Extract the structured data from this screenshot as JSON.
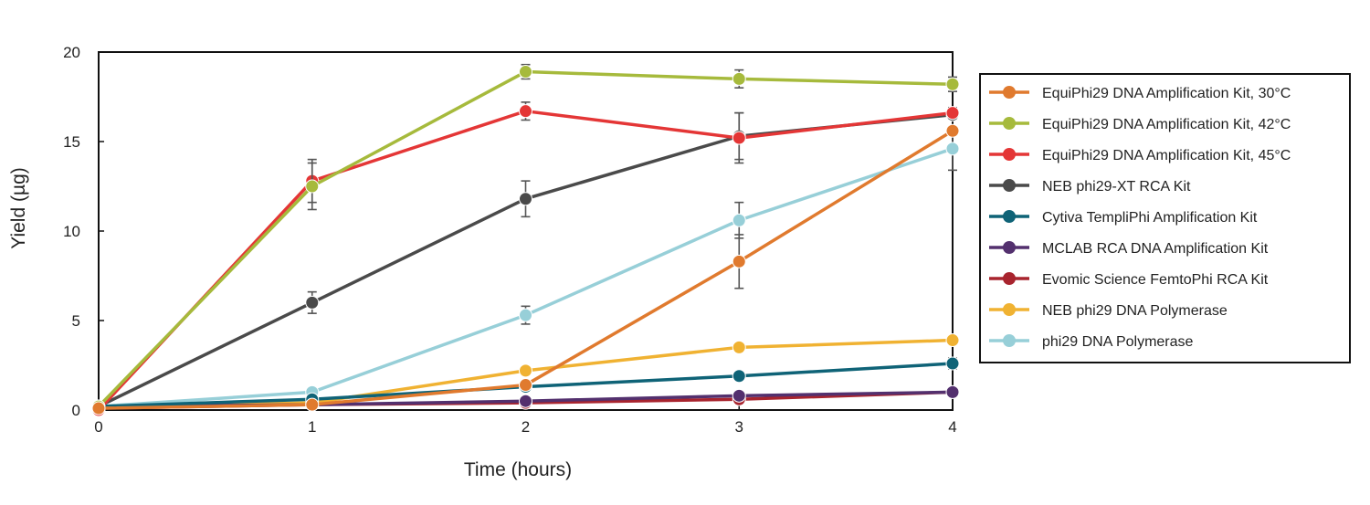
{
  "chart_data": {
    "type": "line",
    "title": "",
    "xlabel": "Time (hours)",
    "ylabel": "Yield (µg)",
    "x": [
      0,
      1,
      2,
      3,
      4
    ],
    "x_ticks": [
      "0",
      "1",
      "2",
      "3",
      "4"
    ],
    "y_ticks": [
      "0",
      "5",
      "10",
      "15",
      "20"
    ],
    "xlim": [
      0,
      4
    ],
    "ylim": [
      0,
      20
    ],
    "grid": false,
    "legend_position": "right",
    "error_bar_color": "#555555",
    "series": [
      {
        "name": "EquiPhi29 DNA Amplification Kit, 30°C",
        "color": "#E07A2E",
        "values": [
          0.1,
          0.3,
          1.4,
          8.3,
          15.6
        ],
        "errors": [
          0,
          0,
          0.2,
          1.5,
          0.2
        ]
      },
      {
        "name": "EquiPhi29 DNA Amplification Kit, 42°C",
        "color": "#A6BA3C",
        "values": [
          0.2,
          12.5,
          18.9,
          18.5,
          18.2
        ],
        "errors": [
          0,
          1.3,
          0.4,
          0.5,
          0.4
        ]
      },
      {
        "name": "EquiPhi29 DNA Amplification Kit, 45°C",
        "color": "#E43636",
        "values": [
          0.0,
          12.8,
          16.7,
          15.2,
          16.6
        ],
        "errors": [
          0,
          1.2,
          0.5,
          1.4,
          0.3
        ]
      },
      {
        "name": "NEB phi29-XT RCA Kit",
        "color": "#4A4A4A",
        "values": [
          0.2,
          6.0,
          11.8,
          15.3,
          16.5
        ],
        "errors": [
          0,
          0.6,
          1.0,
          1.3,
          0.2
        ]
      },
      {
        "name": "Cytiva TempliPhi Amplification Kit",
        "color": "#0F6377",
        "values": [
          0.2,
          0.6,
          1.3,
          1.9,
          2.6
        ],
        "errors": [
          0,
          0,
          0,
          0.2,
          0.3
        ]
      },
      {
        "name": "MCLAB RCA DNA Amplification Kit",
        "color": "#53306E",
        "values": [
          0.2,
          0.3,
          0.5,
          0.8,
          1.0
        ],
        "errors": [
          0,
          0,
          0,
          0,
          0.2
        ]
      },
      {
        "name": "Evomic Science FemtoPhi RCA Kit",
        "color": "#A8242E",
        "values": [
          0.1,
          0.3,
          0.4,
          0.6,
          1.0
        ],
        "errors": [
          0,
          0,
          0,
          0,
          0
        ]
      },
      {
        "name": "NEB phi29 DNA Polymerase",
        "color": "#F0B232",
        "values": [
          0.2,
          0.4,
          2.2,
          3.5,
          3.9
        ],
        "errors": [
          0,
          0,
          0,
          0,
          0
        ]
      },
      {
        "name": "phi29 DNA Polymerase",
        "color": "#97CFD8",
        "values": [
          0.2,
          1.0,
          5.3,
          10.6,
          14.6
        ],
        "errors": [
          0,
          0,
          0.5,
          1.0,
          1.2
        ]
      }
    ]
  }
}
